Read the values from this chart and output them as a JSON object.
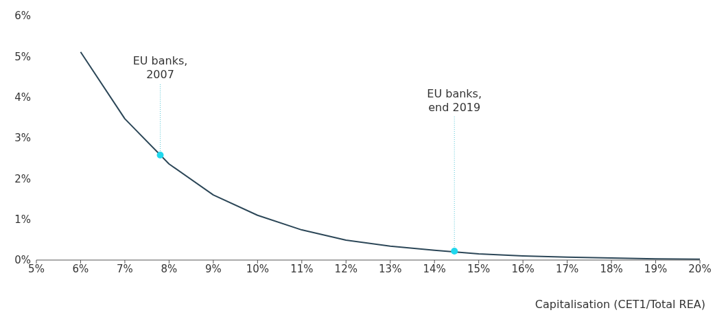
{
  "chart_data": {
    "type": "line",
    "xlabel": "Capitalisation (CET1/Total REA)",
    "series": [
      {
        "color": "#2b4657",
        "marker": "none",
        "x": [
          6,
          7,
          8,
          9,
          10,
          11,
          12,
          13,
          14,
          15,
          16,
          17,
          18,
          19,
          20
        ],
        "values": [
          5.11,
          3.47,
          2.36,
          1.6,
          1.1,
          0.74,
          0.49,
          0.34,
          0.24,
          0.15,
          0.1,
          0.07,
          0.05,
          0.03,
          0.02
        ]
      },
      {
        "type": "scatter",
        "marker": "circle",
        "color": "#1fd8ee",
        "x": [
          7.8,
          14.45
        ],
        "values": [
          2.58,
          0.22
        ]
      }
    ],
    "annotations": [
      {
        "text": "EU banks,\n2007",
        "x": 7.8,
        "y": 2.58
      },
      {
        "text": "EU banks,\nend 2019",
        "x": 14.45,
        "y": 0.22
      }
    ],
    "xlim": [
      5,
      20
    ],
    "ylim": [
      0,
      6
    ],
    "xticks": [
      {
        "value": 5,
        "label": "5%"
      },
      {
        "value": 6,
        "label": "6%"
      },
      {
        "value": 7,
        "label": "7%"
      },
      {
        "value": 8,
        "label": "8%"
      },
      {
        "value": 9,
        "label": "9%"
      },
      {
        "value": 10,
        "label": "10%"
      },
      {
        "value": 11,
        "label": "11%"
      },
      {
        "value": 12,
        "label": "12%"
      },
      {
        "value": 13,
        "label": "13%"
      },
      {
        "value": 14,
        "label": "14%"
      },
      {
        "value": 15,
        "label": "15%"
      },
      {
        "value": 16,
        "label": "16%"
      },
      {
        "value": 17,
        "label": "17%"
      },
      {
        "value": 18,
        "label": "18%"
      },
      {
        "value": 19,
        "label": "19%"
      },
      {
        "value": 20,
        "label": "20%"
      }
    ],
    "yticks": [
      {
        "value": 0,
        "label": "0%"
      },
      {
        "value": 1,
        "label": "1%"
      },
      {
        "value": 2,
        "label": "2%"
      },
      {
        "value": 3,
        "label": "3%"
      },
      {
        "value": 4,
        "label": "4%"
      },
      {
        "value": 5,
        "label": "5%"
      },
      {
        "value": 6,
        "label": "6%"
      }
    ],
    "grid": false,
    "line_style": "solid"
  }
}
